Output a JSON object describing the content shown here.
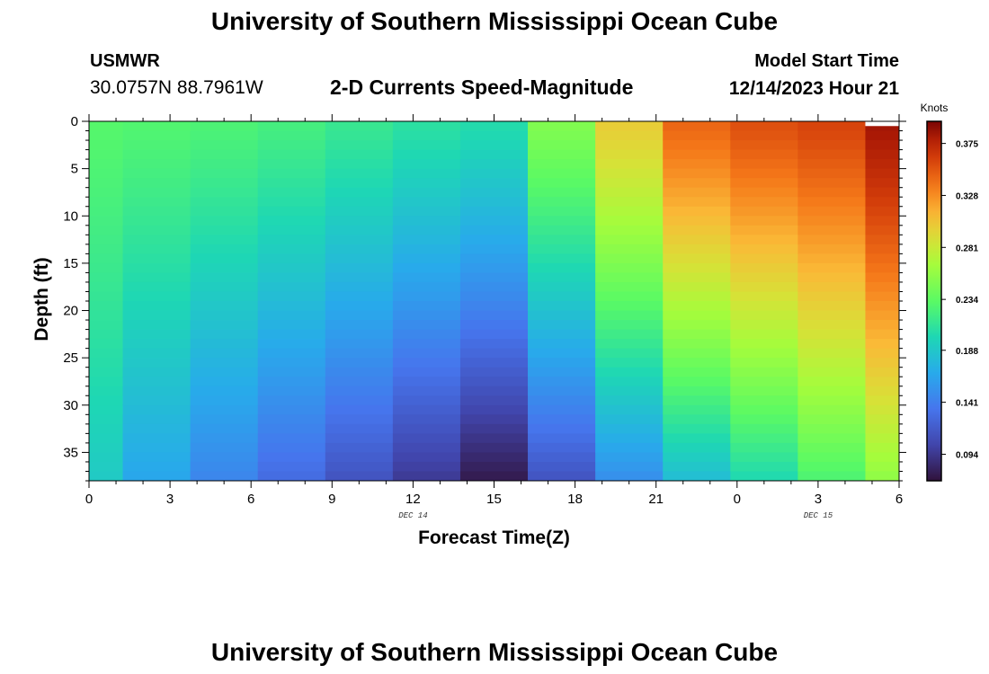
{
  "header": {
    "title": "University of Southern Mississippi Ocean Cube",
    "station_name": "USMWR",
    "coordinates": "30.0757N  88.7961W",
    "subtitle": "2-D Currents Speed-Magnitude",
    "model_start_label": "Model Start Time",
    "model_start_value": "12/14/2023 Hour 21"
  },
  "footer": {
    "title": "University of Southern Mississippi Ocean Cube"
  },
  "chart_data": {
    "type": "heatmap",
    "title": "2-D Currents Speed-Magnitude",
    "xlabel": "Forecast Time(Z)",
    "ylabel": "Depth (ft)",
    "x_tick_labels": [
      "0",
      "3",
      "6",
      "9",
      "12",
      "15",
      "18",
      "21",
      "0",
      "3",
      "6"
    ],
    "date_labels": [
      {
        "hour": 12,
        "text": "DEC 14"
      },
      {
        "hour": 27,
        "text": "DEC 15"
      }
    ],
    "xlim": [
      0,
      30
    ],
    "ylim": [
      0,
      38
    ],
    "y_ticks": [
      0,
      5,
      10,
      15,
      20,
      25,
      30,
      35
    ],
    "y_inverted": true,
    "colorbar": {
      "unit": "Knots",
      "tick_values": [
        0.094,
        0.141,
        0.188,
        0.234,
        0.281,
        0.328,
        0.375
      ],
      "tick_labels": [
        "0.094",
        "0.141",
        "0.188",
        "0.234",
        "0.281",
        "0.328",
        "0.375"
      ],
      "range": [
        0.07,
        0.395
      ],
      "colormap": "turbo"
    },
    "columns": [
      {
        "hour_start": 0,
        "hour_end": 1.25,
        "surface_speed": 0.23,
        "bottom_speed": 0.19
      },
      {
        "hour_start": 1.25,
        "hour_end": 3.75,
        "surface_speed": 0.228,
        "bottom_speed": 0.165
      },
      {
        "hour_start": 3.75,
        "hour_end": 6.25,
        "surface_speed": 0.226,
        "bottom_speed": 0.145
      },
      {
        "hour_start": 6.25,
        "hour_end": 8.75,
        "surface_speed": 0.222,
        "bottom_speed": 0.128
      },
      {
        "hour_start": 8.75,
        "hour_end": 11.25,
        "surface_speed": 0.215,
        "bottom_speed": 0.112
      },
      {
        "hour_start": 11.25,
        "hour_end": 13.75,
        "surface_speed": 0.208,
        "bottom_speed": 0.095
      },
      {
        "hour_start": 13.75,
        "hour_end": 16.25,
        "surface_speed": 0.204,
        "bottom_speed": 0.075
      },
      {
        "hour_start": 16.25,
        "hour_end": 18.75,
        "surface_speed": 0.25,
        "bottom_speed": 0.112
      },
      {
        "hour_start": 18.75,
        "hour_end": 21.25,
        "surface_speed": 0.3,
        "bottom_speed": 0.15
      },
      {
        "hour_start": 21.25,
        "hour_end": 23.75,
        "surface_speed": 0.345,
        "bottom_speed": 0.18
      },
      {
        "hour_start": 23.75,
        "hour_end": 26.25,
        "surface_speed": 0.355,
        "bottom_speed": 0.2
      },
      {
        "hour_start": 26.25,
        "hour_end": 28.75,
        "surface_speed": 0.36,
        "bottom_speed": 0.225
      },
      {
        "hour_start": 28.75,
        "hour_end": 30,
        "surface_speed": 0.385,
        "bottom_speed": 0.255
      }
    ],
    "no_data": [
      {
        "hour_start": 28.75,
        "hour_end": 30,
        "depth_start": 0,
        "depth_end": 0.5
      }
    ],
    "grid": false
  }
}
